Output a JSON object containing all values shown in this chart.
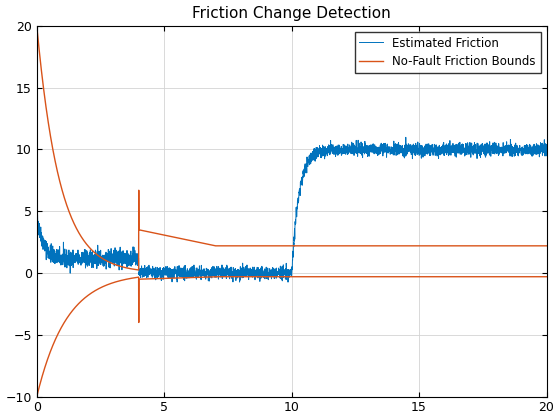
{
  "title": "Friction Change Detection",
  "xlim": [
    0,
    20
  ],
  "ylim": [
    -10,
    20
  ],
  "xticks": [
    0,
    5,
    10,
    15,
    20
  ],
  "yticks": [
    -10,
    -5,
    0,
    5,
    10,
    15,
    20
  ],
  "blue_color": "#0072BD",
  "orange_color": "#D95319",
  "legend_entries": [
    "Estimated Friction",
    "No-Fault Friction Bounds"
  ],
  "seed": 42,
  "figsize": [
    5.6,
    4.2
  ],
  "dpi": 100,
  "upper_final": 2.2,
  "lower_final": -0.3,
  "step_x": 4.0,
  "upper_before_step": 6.7,
  "lower_before_step": -4.0,
  "upper_after_step": 3.5,
  "lower_after_step": -0.5,
  "converge_x": 7.0
}
